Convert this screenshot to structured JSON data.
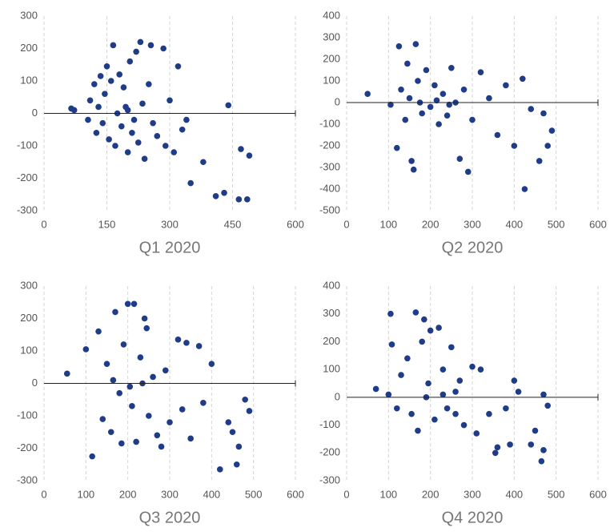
{
  "chart_data": [
    {
      "type": "scatter",
      "title": "Q1 2020",
      "x": [
        65,
        72,
        105,
        110,
        120,
        125,
        130,
        135,
        140,
        145,
        150,
        155,
        160,
        165,
        170,
        180,
        185,
        190,
        200,
        205,
        210,
        220,
        225,
        230,
        240,
        250,
        255,
        270,
        285,
        290,
        310,
        320,
        340,
        350,
        380,
        410,
        430,
        440,
        465,
        485,
        490,
        470,
        175,
        195,
        215,
        235,
        260,
        300,
        330,
        200
      ],
      "y": [
        15,
        10,
        -20,
        40,
        90,
        -60,
        20,
        115,
        -30,
        60,
        145,
        -80,
        100,
        210,
        -100,
        120,
        -40,
        80,
        -120,
        160,
        -60,
        190,
        -90,
        220,
        -140,
        90,
        210,
        -70,
        200,
        -100,
        -120,
        145,
        -20,
        -215,
        -150,
        -255,
        -245,
        25,
        -265,
        -265,
        -130,
        -110,
        0,
        20,
        -20,
        30,
        -30,
        40,
        -50,
        10
      ],
      "color": "#1f3c88",
      "xlim": [
        0,
        600
      ],
      "ylim": [
        -300,
        300
      ],
      "xticks": [
        0,
        150,
        300,
        450,
        600
      ],
      "yticks": [
        -300,
        -200,
        -100,
        0,
        100,
        200,
        300
      ],
      "grid": "x",
      "zero_line": true
    },
    {
      "type": "scatter",
      "title": "Q2 2020",
      "x": [
        50,
        105,
        120,
        125,
        130,
        140,
        145,
        150,
        155,
        160,
        165,
        170,
        180,
        190,
        200,
        210,
        220,
        230,
        240,
        250,
        260,
        270,
        280,
        290,
        300,
        320,
        340,
        360,
        380,
        400,
        420,
        425,
        440,
        460,
        470,
        480,
        490,
        175,
        215,
        245
      ],
      "y": [
        40,
        -10,
        -210,
        260,
        60,
        -80,
        180,
        20,
        -270,
        -310,
        270,
        100,
        -50,
        150,
        -20,
        80,
        -100,
        40,
        -60,
        160,
        0,
        -260,
        60,
        -320,
        -80,
        140,
        20,
        -150,
        80,
        -200,
        110,
        -400,
        -30,
        -270,
        -50,
        -200,
        -130,
        0,
        10,
        -10
      ],
      "color": "#1f3c88",
      "xlim": [
        0,
        600
      ],
      "ylim": [
        -500,
        400
      ],
      "xticks": [
        0,
        100,
        200,
        300,
        400,
        500,
        600
      ],
      "yticks": [
        -500,
        -400,
        -300,
        -200,
        -100,
        0,
        100,
        200,
        300,
        400
      ],
      "grid": "x",
      "zero_line": true
    },
    {
      "type": "scatter",
      "title": "Q3 2020",
      "x": [
        55,
        100,
        115,
        130,
        140,
        150,
        160,
        170,
        180,
        185,
        190,
        200,
        210,
        215,
        220,
        230,
        240,
        245,
        250,
        260,
        270,
        280,
        290,
        300,
        320,
        330,
        340,
        350,
        370,
        380,
        400,
        420,
        440,
        450,
        460,
        465,
        480,
        490,
        165,
        205,
        235
      ],
      "y": [
        30,
        105,
        -225,
        160,
        -110,
        60,
        -150,
        220,
        -30,
        -185,
        120,
        245,
        -70,
        245,
        -180,
        80,
        200,
        170,
        -100,
        20,
        -160,
        -195,
        40,
        -120,
        135,
        -80,
        125,
        -170,
        115,
        -60,
        60,
        -265,
        -120,
        -150,
        -250,
        -195,
        -50,
        -85,
        10,
        -10,
        0
      ],
      "color": "#1f3c88",
      "xlim": [
        0,
        600
      ],
      "ylim": [
        -300,
        300
      ],
      "xticks": [
        0,
        100,
        200,
        300,
        400,
        500,
        600
      ],
      "yticks": [
        -300,
        -200,
        -100,
        0,
        100,
        200,
        300
      ],
      "grid": "x",
      "zero_line": true
    },
    {
      "type": "scatter",
      "title": "Q4 2020",
      "x": [
        70,
        100,
        105,
        108,
        120,
        130,
        145,
        155,
        165,
        170,
        180,
        185,
        195,
        200,
        210,
        220,
        230,
        240,
        250,
        260,
        270,
        280,
        300,
        310,
        320,
        340,
        355,
        360,
        380,
        390,
        400,
        410,
        440,
        450,
        465,
        470,
        470,
        480,
        190,
        230,
        260
      ],
      "y": [
        30,
        10,
        300,
        190,
        -40,
        80,
        140,
        -60,
        305,
        -120,
        200,
        280,
        50,
        240,
        -80,
        250,
        100,
        -40,
        180,
        -60,
        60,
        -100,
        110,
        -130,
        100,
        -60,
        -200,
        -180,
        -40,
        -170,
        60,
        20,
        -170,
        -120,
        -230,
        -190,
        10,
        -30,
        0,
        10,
        20
      ],
      "color": "#1f3c88",
      "xlim": [
        0,
        600
      ],
      "ylim": [
        -300,
        400
      ],
      "xticks": [
        0,
        100,
        200,
        300,
        400,
        500,
        600
      ],
      "yticks": [
        -300,
        -200,
        -100,
        0,
        100,
        200,
        300,
        400
      ],
      "grid": "x",
      "zero_line": true
    }
  ]
}
